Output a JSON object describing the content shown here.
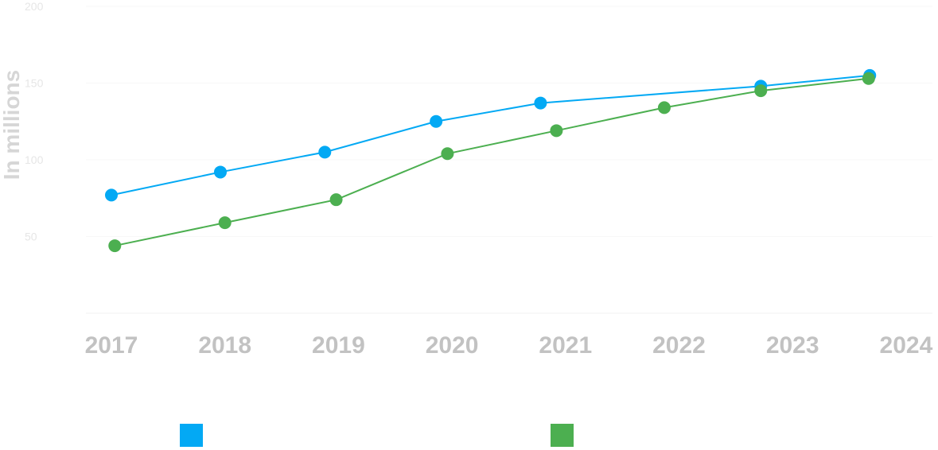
{
  "chart_data": {
    "type": "line",
    "title": "",
    "xlabel": "",
    "ylabel": "In millions",
    "ylim": [
      0,
      200
    ],
    "yticks": [
      "200",
      "150",
      "100",
      "50"
    ],
    "grid": true,
    "categories": [
      "2017",
      "2018",
      "2019",
      "2020",
      "2021",
      "2022",
      "2023",
      "2024"
    ],
    "series": [
      {
        "name": "",
        "color": "#03a9f4",
        "points": [
          {
            "x": 0.0,
            "y": 77
          },
          {
            "x": 0.96,
            "y": 92
          },
          {
            "x": 1.88,
            "y": 105
          },
          {
            "x": 2.86,
            "y": 125
          },
          {
            "x": 3.78,
            "y": 137
          },
          {
            "x": 5.72,
            "y": 148
          },
          {
            "x": 6.68,
            "y": 155
          }
        ]
      },
      {
        "name": "",
        "color": "#4caf50",
        "points": [
          {
            "x": 0.03,
            "y": 44
          },
          {
            "x": 1.0,
            "y": 59
          },
          {
            "x": 1.98,
            "y": 74
          },
          {
            "x": 2.96,
            "y": 104
          },
          {
            "x": 3.92,
            "y": 119
          },
          {
            "x": 4.87,
            "y": 134
          },
          {
            "x": 5.72,
            "y": 145
          },
          {
            "x": 6.67,
            "y": 153
          }
        ]
      }
    ],
    "legend": "bottom"
  }
}
